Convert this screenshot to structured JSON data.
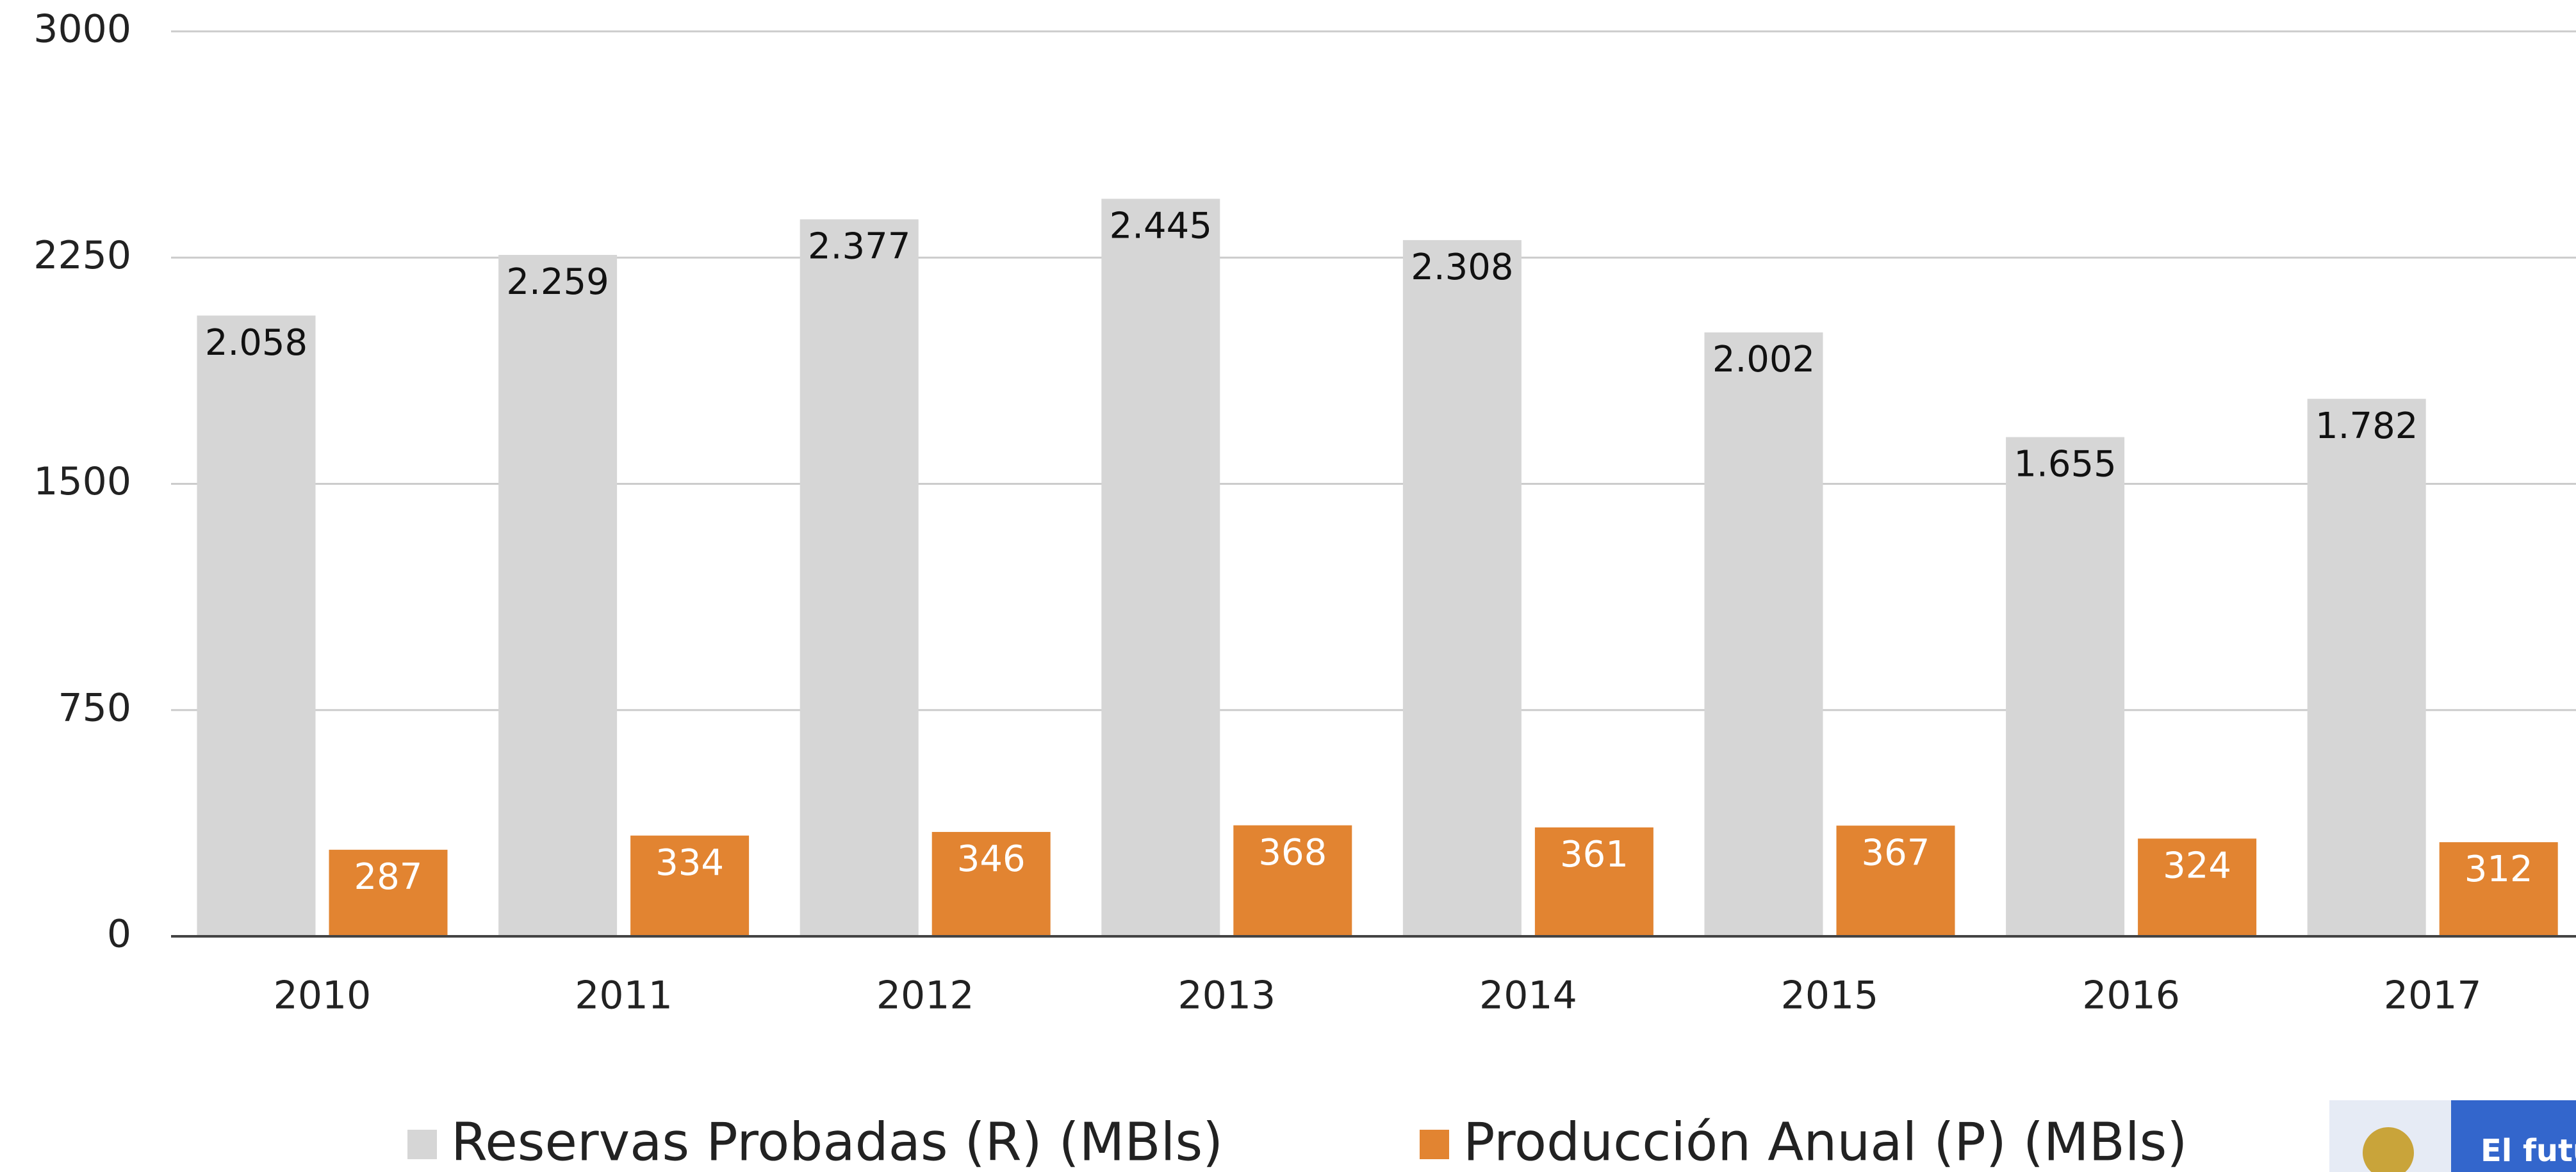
{
  "chart_data": {
    "type": "bar",
    "categories": [
      "2010",
      "2011",
      "2012",
      "2013",
      "2014",
      "2015",
      "2016",
      "2017"
    ],
    "series": [
      {
        "name": "Reservas Probadas (R) (MBls)",
        "color": "#d6d6d6",
        "values": [
          2058,
          2259,
          2377,
          2445,
          2308,
          2002,
          1655,
          1782
        ],
        "value_labels": [
          "2.058",
          "2.259",
          "2.377",
          "2.445",
          "2.308",
          "2.002",
          "1.655",
          "1.782"
        ]
      },
      {
        "name": "Producción Anual (P) (MBls)",
        "color": "#e28431",
        "values": [
          287,
          334,
          346,
          368,
          361,
          367,
          324,
          312
        ]
      }
    ],
    "ylim": [
      0,
      3000
    ],
    "yticks": [
      0,
      750,
      1500,
      2250,
      3000
    ],
    "grid": true
  },
  "logo_text": "El futu"
}
